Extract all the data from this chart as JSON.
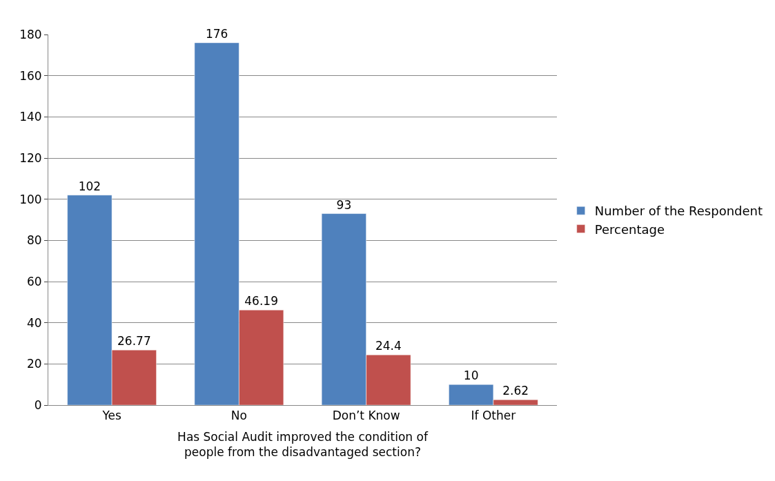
{
  "chart_data": {
    "type": "bar",
    "xlabel": "Has Social Audit improved the condition of people from the disadvantaged section?",
    "categories": [
      "Yes",
      "No",
      "Don’t Know",
      "If Other"
    ],
    "series": [
      {
        "name": "Number of the Respondent",
        "color": "#4f81bd",
        "values": [
          102,
          176,
          93,
          10
        ]
      },
      {
        "name": "Percentage",
        "color": "#c0504d",
        "values": [
          26.77,
          46.19,
          24.4,
          2.62
        ]
      }
    ],
    "ylim": [
      0,
      180
    ],
    "yticks": [
      0,
      20,
      40,
      60,
      80,
      100,
      120,
      140,
      160,
      180
    ],
    "grid": "y",
    "legend": "right",
    "data_labels": true
  }
}
